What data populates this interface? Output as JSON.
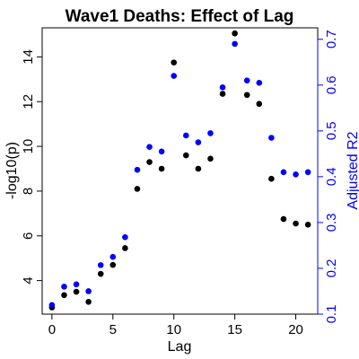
{
  "chart_data": {
    "type": "scatter",
    "title": "Wave1 Deaths: Effect of Lag",
    "xlabel": "Lag",
    "ylabel_left": "-log10(p)",
    "ylabel_right": "Adjusted R2",
    "xlim": [
      -0.8,
      21.8
    ],
    "ylim_left": [
      2.5,
      15.3
    ],
    "ylim_right": [
      0.1,
      0.725
    ],
    "x_ticks": [
      0,
      5,
      10,
      15,
      20
    ],
    "y_left_ticks": [
      4,
      6,
      8,
      10,
      12,
      14
    ],
    "y_right_ticks": [
      0.1,
      0.2,
      0.3,
      0.4,
      0.5,
      0.6,
      0.7
    ],
    "grid": false,
    "colors": {
      "left_series": "#000000",
      "right_series": "#0000ff",
      "frame": "#000000"
    },
    "series": [
      {
        "name": "-log10(p)",
        "axis": "left",
        "x": [
          0,
          1,
          2,
          3,
          4,
          5,
          6,
          7,
          8,
          9,
          10,
          11,
          12,
          13,
          14,
          15,
          16,
          17,
          18,
          19,
          20,
          21
        ],
        "values": [
          2.8,
          3.35,
          3.5,
          3.05,
          4.3,
          4.7,
          5.45,
          8.1,
          9.3,
          9.0,
          13.75,
          9.6,
          9.0,
          9.45,
          12.35,
          15.05,
          12.3,
          11.9,
          8.55,
          6.75,
          6.55,
          6.5
        ]
      },
      {
        "name": "Adjusted R2",
        "axis": "right",
        "x": [
          0,
          1,
          2,
          3,
          4,
          5,
          6,
          7,
          8,
          9,
          10,
          11,
          12,
          13,
          14,
          15,
          16,
          17,
          18,
          19,
          20,
          21
        ],
        "values": [
          0.12,
          0.16,
          0.165,
          0.15,
          0.207,
          0.225,
          0.268,
          0.415,
          0.465,
          0.455,
          0.62,
          0.49,
          0.475,
          0.495,
          0.595,
          0.69,
          0.61,
          0.605,
          0.485,
          0.41,
          0.405,
          0.41
        ]
      }
    ]
  }
}
